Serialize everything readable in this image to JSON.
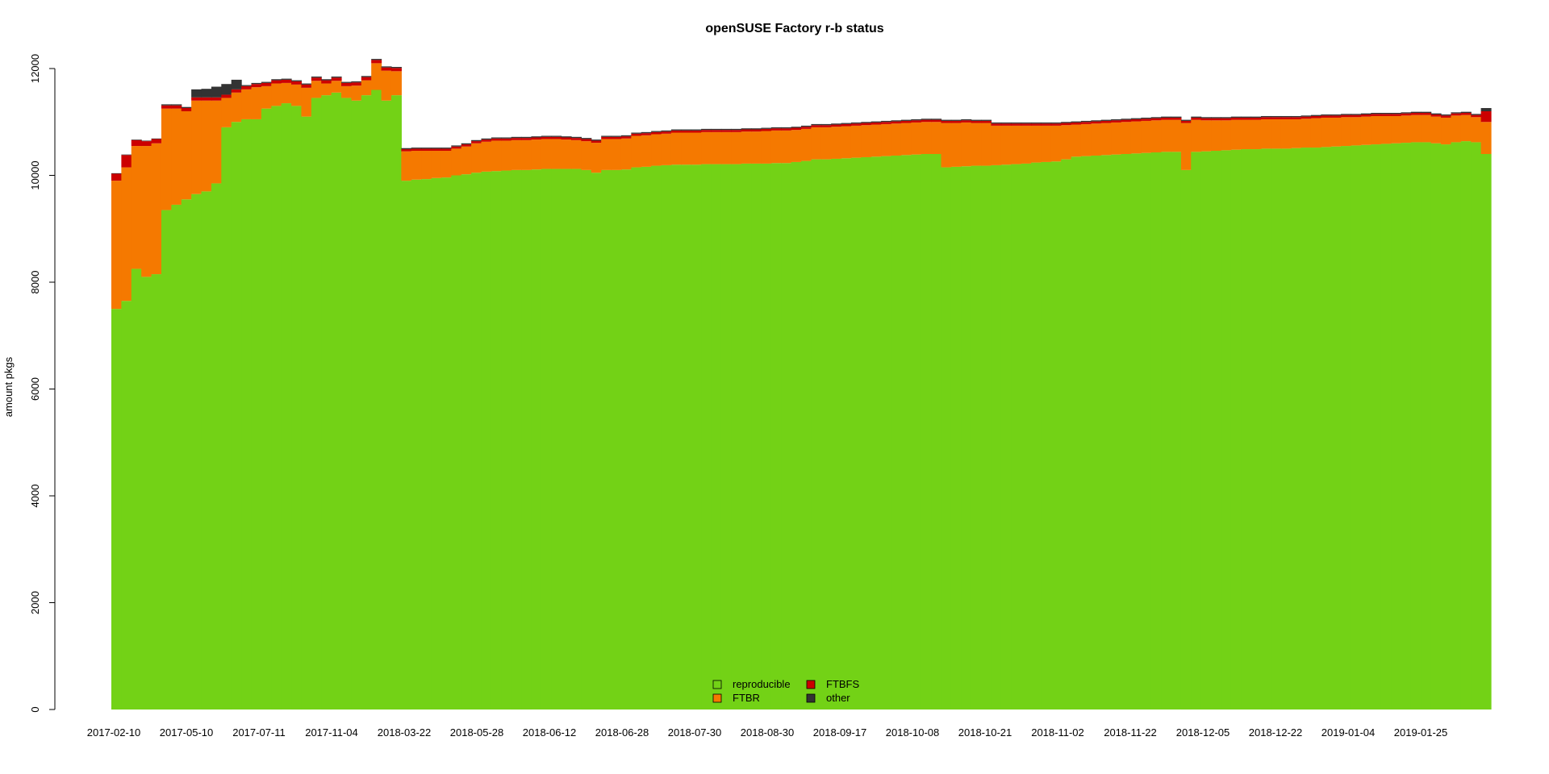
{
  "chart_data": {
    "type": "bar",
    "stacked": true,
    "title": "openSUSE Factory r-b status",
    "xlabel": "",
    "ylabel": "amount pkgs",
    "ylim": [
      0,
      12000
    ],
    "yticks": [
      0,
      2000,
      4000,
      6000,
      8000,
      10000,
      12000
    ],
    "x_tick_labels": [
      "2017-02-10",
      "2017-05-10",
      "2017-07-11",
      "2017-11-04",
      "2018-03-22",
      "2018-05-28",
      "2018-06-12",
      "2018-06-28",
      "2018-07-30",
      "2018-08-30",
      "2018-09-17",
      "2018-10-08",
      "2018-10-21",
      "2018-11-02",
      "2018-11-22",
      "2018-12-05",
      "2018-12-22",
      "2019-01-04",
      "2019-01-25"
    ],
    "legend": {
      "position": "bottom-center",
      "entries": [
        "reproducible",
        "FTBR",
        "FTBFS",
        "other"
      ]
    },
    "grid": false,
    "series": [
      {
        "name": "reproducible",
        "color": "#73d216",
        "values": [
          7500,
          7650,
          8250,
          8100,
          8150,
          9350,
          9450,
          9550,
          9650,
          9700,
          9850,
          10900,
          11000,
          11050,
          11050,
          11250,
          11300,
          11350,
          11300,
          11100,
          11450,
          11500,
          11550,
          11450,
          11400,
          11500,
          11600,
          11400,
          11500,
          9900,
          9920,
          9930,
          9950,
          9960,
          10000,
          10020,
          10050,
          10070,
          10080,
          10090,
          10100,
          10100,
          10110,
          10120,
          10120,
          10120,
          10120,
          10100,
          10050,
          10100,
          10100,
          10110,
          10150,
          10160,
          10180,
          10190,
          10200,
          10200,
          10200,
          10210,
          10210,
          10210,
          10210,
          10220,
          10220,
          10220,
          10230,
          10230,
          10250,
          10270,
          10300,
          10300,
          10310,
          10320,
          10330,
          10340,
          10350,
          10360,
          10370,
          10380,
          10390,
          10400,
          10400,
          10150,
          10160,
          10170,
          10180,
          10180,
          10190,
          10200,
          10210,
          10220,
          10240,
          10250,
          10260,
          10300,
          10350,
          10360,
          10370,
          10380,
          10390,
          10400,
          10410,
          10420,
          10430,
          10440,
          10440,
          10100,
          10440,
          10450,
          10460,
          10470,
          10480,
          10490,
          10490,
          10500,
          10500,
          10500,
          10510,
          10520,
          10520,
          10530,
          10540,
          10550,
          10560,
          10570,
          10580,
          10590,
          10600,
          10610,
          10620,
          10620,
          10600,
          10580,
          10620,
          10640,
          10620,
          10400
        ],
        "_note": null
      },
      {
        "name": "FTBR",
        "color": "#f57900",
        "values": [
          2400,
          2500,
          2300,
          2450,
          2450,
          1900,
          1800,
          1650,
          1750,
          1700,
          1550,
          550,
          550,
          560,
          600,
          420,
          420,
          380,
          400,
          540,
          320,
          220,
          220,
          220,
          280,
          280,
          500,
          560,
          450,
          550,
          540,
          530,
          510,
          500,
          500,
          520,
          550,
          560,
          570,
          560,
          560,
          560,
          560,
          560,
          560,
          550,
          540,
          540,
          560,
          580,
          580,
          580,
          590,
          590,
          590,
          590,
          600,
          600,
          600,
          600,
          600,
          600,
          600,
          600,
          600,
          610,
          610,
          610,
          600,
          600,
          600,
          600,
          600,
          600,
          600,
          600,
          600,
          600,
          600,
          600,
          600,
          600,
          600,
          830,
          820,
          820,
          800,
          800,
          740,
          730,
          720,
          710,
          690,
          680,
          670,
          640,
          600,
          600,
          600,
          600,
          600,
          600,
          600,
          600,
          600,
          600,
          600,
          880,
          600,
          580,
          570,
          560,
          560,
          550,
          550,
          550,
          550,
          550,
          540,
          540,
          550,
          550,
          540,
          540,
          530,
          530,
          530,
          520,
          510,
          510,
          510,
          510,
          500,
          500,
          500,
          490,
          470,
          600
        ]
      },
      {
        "name": "FTBFS",
        "color": "#cc0000",
        "values": [
          130,
          230,
          110,
          90,
          80,
          60,
          60,
          60,
          60,
          60,
          60,
          60,
          60,
          60,
          60,
          60,
          60,
          60,
          60,
          60,
          60,
          60,
          60,
          60,
          60,
          60,
          60,
          60,
          60,
          40,
          40,
          40,
          40,
          40,
          40,
          40,
          40,
          40,
          40,
          40,
          40,
          40,
          40,
          40,
          40,
          40,
          40,
          40,
          40,
          40,
          40,
          40,
          40,
          40,
          40,
          40,
          40,
          40,
          40,
          40,
          40,
          40,
          40,
          40,
          40,
          40,
          40,
          40,
          40,
          40,
          40,
          40,
          40,
          40,
          40,
          40,
          40,
          40,
          40,
          40,
          40,
          40,
          40,
          40,
          40,
          40,
          40,
          40,
          40,
          40,
          40,
          40,
          40,
          40,
          40,
          40,
          40,
          40,
          40,
          40,
          40,
          40,
          40,
          40,
          40,
          40,
          40,
          40,
          40,
          40,
          40,
          40,
          40,
          40,
          40,
          40,
          40,
          40,
          40,
          40,
          40,
          40,
          40,
          40,
          40,
          40,
          40,
          40,
          40,
          40,
          40,
          40,
          40,
          40,
          40,
          40,
          40,
          200
        ]
      },
      {
        "name": "other",
        "color": "#333333",
        "values": [
          10,
          10,
          10,
          10,
          10,
          20,
          20,
          20,
          150,
          160,
          200,
          200,
          180,
          20,
          20,
          20,
          20,
          20,
          20,
          20,
          20,
          20,
          20,
          20,
          20,
          20,
          20,
          20,
          20,
          20,
          20,
          20,
          20,
          20,
          20,
          20,
          20,
          20,
          20,
          20,
          20,
          20,
          20,
          20,
          20,
          20,
          20,
          20,
          20,
          20,
          20,
          20,
          20,
          20,
          20,
          20,
          20,
          20,
          20,
          20,
          20,
          20,
          20,
          20,
          20,
          20,
          20,
          20,
          20,
          20,
          20,
          20,
          20,
          20,
          20,
          20,
          20,
          20,
          20,
          20,
          20,
          20,
          20,
          20,
          20,
          20,
          20,
          20,
          20,
          20,
          20,
          20,
          20,
          20,
          20,
          20,
          20,
          20,
          20,
          20,
          20,
          20,
          20,
          20,
          20,
          20,
          20,
          20,
          20,
          20,
          20,
          20,
          20,
          20,
          20,
          20,
          20,
          20,
          20,
          20,
          20,
          20,
          20,
          20,
          20,
          20,
          20,
          20,
          20,
          20,
          20,
          20,
          20,
          20,
          20,
          20,
          20,
          60
        ]
      }
    ]
  }
}
